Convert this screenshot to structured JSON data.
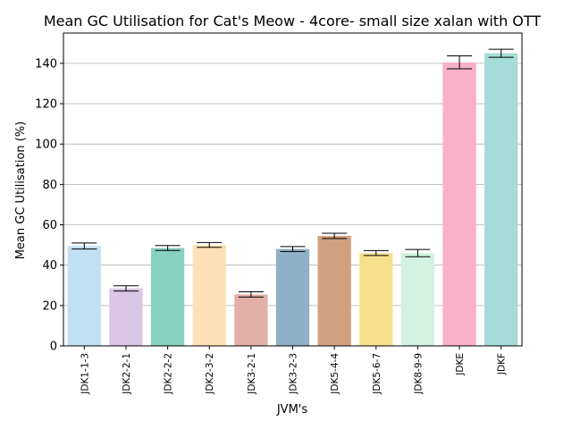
{
  "chart_data": {
    "type": "bar",
    "title": "Mean GC Utilisation for Cat's Meow - 4core- small size xalan with OTT",
    "xlabel": "JVM's",
    "ylabel": "Mean GC Utilisation (%)",
    "ylim": [
      0,
      155
    ],
    "yticks": [
      0,
      20,
      40,
      60,
      80,
      100,
      120,
      140
    ],
    "grid": "horizontal",
    "categories": [
      "JDK1-1-3",
      "JDK2-2-1",
      "JDK2-2-2",
      "JDK2-3-2",
      "JDK3-2-1",
      "JDK3-2-3",
      "JDK5-4-4",
      "JDK5-6-7",
      "JDK8-9-9",
      "JDKE",
      "JDKF"
    ],
    "values": [
      49.5,
      28.5,
      48.5,
      50.0,
      25.5,
      48.0,
      54.5,
      46.0,
      46.0,
      140.5,
      145.0
    ],
    "errors": [
      1.5,
      1.3,
      1.2,
      1.2,
      1.3,
      1.2,
      1.3,
      1.2,
      1.8,
      3.2,
      2.0
    ],
    "colors": [
      "#c2e0f4",
      "#d9c6e6",
      "#88d1c1",
      "#fbe1b5",
      "#e3b0a8",
      "#8fb0c6",
      "#d1a17f",
      "#f6e08e",
      "#d3f2e2",
      "#f8b1c9",
      "#a6dcd7"
    ]
  }
}
